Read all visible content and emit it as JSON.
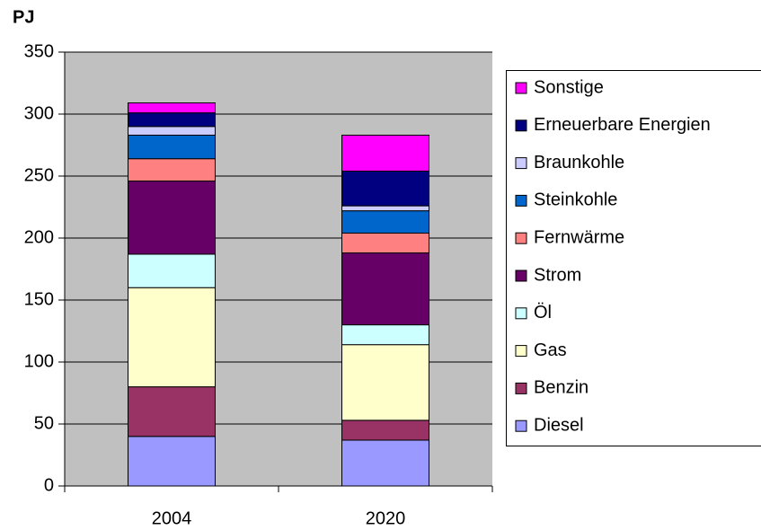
{
  "chart_data": {
    "type": "stacked_bar",
    "y_axis_label": "PJ",
    "categories": [
      "2004",
      "2020"
    ],
    "series": [
      {
        "name": "Diesel",
        "color": "#9999ff",
        "values": [
          40,
          37
        ]
      },
      {
        "name": "Benzin",
        "color": "#993366",
        "values": [
          40,
          16
        ]
      },
      {
        "name": "Gas",
        "color": "#ffffcc",
        "values": [
          80,
          61
        ]
      },
      {
        "name": "Öl",
        "color": "#ccffff",
        "values": [
          27,
          16
        ]
      },
      {
        "name": "Strom",
        "color": "#660066",
        "values": [
          59,
          58
        ]
      },
      {
        "name": "Fernwärme",
        "color": "#ff8080",
        "values": [
          18,
          16
        ]
      },
      {
        "name": "Steinkohle",
        "color": "#0066cc",
        "values": [
          19,
          18
        ]
      },
      {
        "name": "Braunkohle",
        "color": "#ccccff",
        "values": [
          7,
          4
        ]
      },
      {
        "name": "Erneuerbare Energien",
        "color": "#000080",
        "values": [
          11,
          28
        ]
      },
      {
        "name": "Sonstige",
        "color": "#ff00ff",
        "values": [
          8,
          29
        ]
      }
    ],
    "ylim": [
      0,
      350
    ],
    "yticks": [
      0,
      50,
      100,
      150,
      200,
      250,
      300,
      350
    ],
    "grid": true,
    "legend": "right"
  }
}
